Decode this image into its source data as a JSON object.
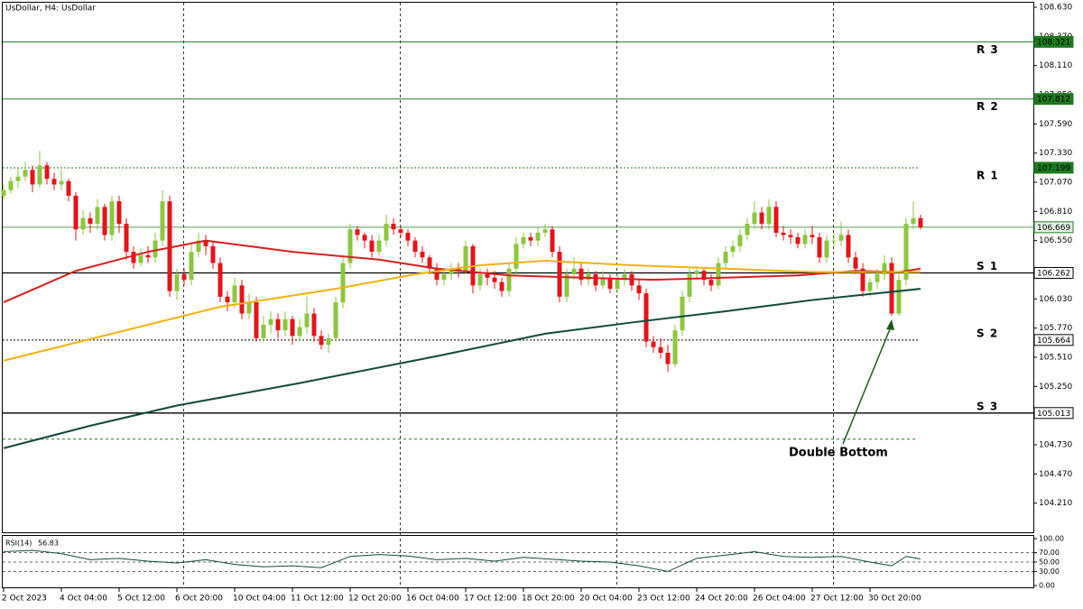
{
  "chart_data": {
    "type": "candlestick",
    "title": "UsDollar, H4:  UsDollar",
    "categories": [
      "2 Oct 2023",
      null,
      null,
      null,
      null,
      null,
      null,
      null,
      "4 Oct 04:00",
      null,
      null,
      null,
      null,
      null,
      null,
      null,
      "5 Oct 12:00",
      null,
      null,
      null,
      null,
      null,
      null,
      null,
      "6 Oct 20:00",
      null,
      null,
      null,
      null,
      null,
      null,
      null,
      "10 Oct 04:00",
      null,
      null,
      null,
      null,
      null,
      null,
      null,
      "11 Oct 12:00",
      null,
      null,
      null,
      null,
      null,
      null,
      null,
      "12 Oct 20:00",
      null,
      null,
      null,
      null,
      null,
      null,
      null,
      "16 Oct 04:00",
      null,
      null,
      null,
      null,
      null,
      null,
      null,
      "17 Oct 12:00",
      null,
      null,
      null,
      null,
      null,
      null,
      null,
      "18 Oct 20:00",
      null,
      null,
      null,
      null,
      null,
      null,
      null,
      "20 Oct 04:00",
      null,
      null,
      null,
      null,
      null,
      null,
      null,
      "23 Oct 12:00",
      null,
      null,
      null,
      null,
      null,
      null,
      null,
      "24 Oct 20:00",
      null,
      null,
      null,
      null,
      null,
      null,
      null,
      "26 Oct 04:00",
      null,
      null,
      null,
      null,
      null,
      null,
      null,
      "27 Oct 12:00",
      null,
      null,
      null,
      null,
      null,
      null,
      null,
      "30 Oct 20:00",
      null,
      null,
      null,
      null,
      null,
      null,
      null
    ],
    "candles": [
      [
        106.95,
        107.05,
        106.92,
        107.0
      ],
      [
        107.0,
        107.12,
        106.97,
        107.08
      ],
      [
        107.08,
        107.2,
        107.02,
        107.12
      ],
      [
        107.12,
        107.25,
        107.08,
        107.18
      ],
      [
        107.18,
        107.22,
        106.98,
        107.05
      ],
      [
        107.05,
        107.35,
        107.02,
        107.22
      ],
      [
        107.22,
        107.25,
        107.05,
        107.1
      ],
      [
        107.1,
        107.15,
        107.0,
        107.05
      ],
      [
        107.05,
        107.18,
        107.0,
        107.08
      ],
      [
        107.08,
        107.1,
        106.9,
        106.95
      ],
      [
        106.95,
        106.98,
        106.55,
        106.65
      ],
      [
        106.65,
        106.82,
        106.6,
        106.75
      ],
      [
        106.75,
        106.8,
        106.62,
        106.7
      ],
      [
        106.7,
        106.92,
        106.65,
        106.85
      ],
      [
        106.85,
        106.88,
        106.55,
        106.6
      ],
      [
        106.6,
        106.95,
        106.55,
        106.9
      ],
      [
        106.9,
        106.95,
        106.62,
        106.7
      ],
      [
        106.7,
        106.75,
        106.38,
        106.45
      ],
      [
        106.45,
        106.5,
        106.3,
        106.35
      ],
      [
        106.35,
        106.48,
        106.32,
        106.42
      ],
      [
        106.42,
        106.5,
        106.35,
        106.4
      ],
      [
        106.4,
        106.62,
        106.35,
        106.55
      ],
      [
        106.55,
        107.0,
        106.5,
        106.9
      ],
      [
        106.9,
        106.95,
        106.05,
        106.1
      ],
      [
        106.1,
        106.3,
        106.02,
        106.25
      ],
      [
        106.25,
        106.3,
        106.15,
        106.2
      ],
      [
        106.2,
        106.52,
        106.15,
        106.45
      ],
      [
        106.45,
        106.62,
        106.4,
        106.55
      ],
      [
        106.55,
        106.6,
        106.42,
        106.5
      ],
      [
        106.5,
        106.55,
        106.3,
        106.35
      ],
      [
        106.35,
        106.4,
        106.0,
        106.05
      ],
      [
        106.05,
        106.1,
        105.92,
        106.0
      ],
      [
        106.0,
        106.22,
        105.95,
        106.15
      ],
      [
        106.15,
        106.2,
        105.85,
        105.9
      ],
      [
        105.9,
        106.08,
        105.85,
        106.0
      ],
      [
        106.0,
        106.05,
        105.65,
        105.68
      ],
      [
        105.68,
        105.88,
        105.65,
        105.8
      ],
      [
        105.8,
        105.92,
        105.72,
        105.85
      ],
      [
        105.85,
        105.9,
        105.68,
        105.75
      ],
      [
        105.75,
        105.92,
        105.7,
        105.85
      ],
      [
        105.85,
        105.88,
        105.62,
        105.7
      ],
      [
        105.7,
        105.85,
        105.65,
        105.78
      ],
      [
        105.78,
        106.05,
        105.72,
        105.9
      ],
      [
        105.9,
        105.95,
        105.65,
        105.7
      ],
      [
        105.7,
        105.75,
        105.58,
        105.62
      ],
      [
        105.62,
        105.72,
        105.55,
        105.68
      ],
      [
        105.68,
        106.05,
        105.65,
        106.0
      ],
      [
        106.0,
        106.4,
        105.95,
        106.35
      ],
      [
        106.35,
        106.7,
        106.3,
        106.65
      ],
      [
        106.65,
        106.68,
        106.55,
        106.6
      ],
      [
        106.6,
        106.62,
        106.48,
        106.55
      ],
      [
        106.55,
        106.6,
        106.4,
        106.45
      ],
      [
        106.45,
        106.6,
        106.42,
        106.55
      ],
      [
        106.55,
        106.78,
        106.5,
        106.7
      ],
      [
        106.7,
        106.75,
        106.6,
        106.65
      ],
      [
        106.65,
        106.68,
        106.58,
        106.62
      ],
      [
        106.62,
        106.65,
        106.5,
        106.55
      ],
      [
        106.55,
        106.58,
        106.4,
        106.45
      ],
      [
        106.45,
        106.5,
        106.35,
        106.4
      ],
      [
        106.4,
        106.42,
        106.25,
        106.3
      ],
      [
        106.3,
        106.35,
        106.15,
        106.2
      ],
      [
        106.2,
        106.3,
        106.15,
        106.25
      ],
      [
        106.25,
        106.35,
        106.2,
        106.3
      ],
      [
        106.3,
        106.35,
        106.22,
        106.28
      ],
      [
        106.28,
        106.55,
        106.25,
        106.5
      ],
      [
        106.5,
        106.52,
        106.08,
        106.15
      ],
      [
        106.15,
        106.3,
        106.1,
        106.25
      ],
      [
        106.25,
        106.3,
        106.15,
        106.22
      ],
      [
        106.22,
        106.28,
        106.12,
        106.18
      ],
      [
        106.18,
        106.22,
        106.05,
        106.1
      ],
      [
        106.1,
        106.35,
        106.05,
        106.3
      ],
      [
        106.3,
        106.58,
        106.25,
        106.52
      ],
      [
        106.52,
        106.62,
        106.48,
        106.58
      ],
      [
        106.58,
        106.62,
        106.5,
        106.55
      ],
      [
        106.55,
        106.68,
        106.5,
        106.62
      ],
      [
        106.62,
        106.7,
        106.58,
        106.65
      ],
      [
        106.65,
        106.68,
        106.4,
        106.45
      ],
      [
        106.45,
        106.5,
        106.0,
        106.05
      ],
      [
        106.05,
        106.3,
        106.0,
        106.25
      ],
      [
        106.25,
        106.4,
        106.2,
        106.3
      ],
      [
        106.3,
        106.35,
        106.15,
        106.2
      ],
      [
        106.2,
        106.3,
        106.15,
        106.25
      ],
      [
        106.25,
        106.28,
        106.1,
        106.15
      ],
      [
        106.15,
        106.28,
        106.12,
        106.22
      ],
      [
        106.22,
        106.25,
        106.08,
        106.12
      ],
      [
        106.12,
        106.25,
        106.08,
        106.2
      ],
      [
        106.2,
        106.3,
        106.15,
        106.25
      ],
      [
        106.25,
        106.28,
        106.1,
        106.15
      ],
      [
        106.15,
        106.2,
        106.02,
        106.08
      ],
      [
        106.08,
        106.12,
        105.6,
        105.65
      ],
      [
        105.65,
        105.7,
        105.55,
        105.6
      ],
      [
        105.6,
        105.68,
        105.5,
        105.55
      ],
      [
        105.55,
        105.62,
        105.38,
        105.45
      ],
      [
        105.45,
        105.8,
        105.42,
        105.75
      ],
      [
        105.75,
        106.1,
        105.7,
        106.05
      ],
      [
        106.05,
        106.3,
        106.0,
        106.25
      ],
      [
        106.25,
        106.32,
        106.2,
        106.28
      ],
      [
        106.28,
        106.3,
        106.15,
        106.2
      ],
      [
        106.2,
        106.25,
        106.1,
        106.15
      ],
      [
        106.15,
        106.4,
        106.12,
        106.35
      ],
      [
        106.35,
        106.5,
        106.3,
        106.45
      ],
      [
        106.45,
        106.55,
        106.4,
        106.5
      ],
      [
        106.5,
        106.65,
        106.45,
        106.6
      ],
      [
        106.6,
        106.75,
        106.55,
        106.7
      ],
      [
        106.7,
        106.9,
        106.65,
        106.8
      ],
      [
        106.8,
        106.85,
        106.65,
        106.7
      ],
      [
        106.7,
        106.92,
        106.65,
        106.85
      ],
      [
        106.85,
        106.9,
        106.58,
        106.62
      ],
      [
        106.62,
        106.68,
        106.55,
        106.6
      ],
      [
        106.6,
        106.65,
        106.52,
        106.58
      ],
      [
        106.58,
        106.62,
        106.48,
        106.52
      ],
      [
        106.52,
        106.65,
        106.48,
        106.6
      ],
      [
        106.6,
        106.68,
        106.52,
        106.58
      ],
      [
        106.58,
        106.62,
        106.35,
        106.4
      ],
      [
        106.4,
        106.6,
        106.35,
        106.55
      ],
      [
        106.55,
        106.62,
        106.5,
        106.55
      ],
      [
        106.55,
        106.72,
        106.5,
        106.6
      ],
      [
        106.6,
        106.65,
        106.35,
        106.4
      ],
      [
        106.4,
        106.45,
        106.25,
        106.3
      ],
      [
        106.3,
        106.35,
        106.05,
        106.1
      ],
      [
        106.1,
        106.22,
        106.05,
        106.18
      ],
      [
        106.18,
        106.3,
        106.12,
        106.25
      ],
      [
        106.25,
        106.42,
        106.2,
        106.35
      ],
      [
        106.35,
        106.4,
        105.88,
        105.9
      ],
      [
        105.9,
        106.25,
        105.88,
        106.2
      ],
      [
        106.2,
        106.75,
        106.15,
        106.7
      ],
      [
        106.7,
        106.9,
        106.65,
        106.75
      ],
      [
        106.75,
        106.78,
        106.65,
        106.67
      ]
    ],
    "up_color": "#8cc63f",
    "down_color": "#e3141b",
    "ylim": [
      103.95,
      108.67
    ],
    "yticks": [
      {
        "value": 108.63,
        "label": "108.630"
      },
      {
        "value": 108.37,
        "label": "108.370"
      },
      {
        "value": 108.11,
        "label": "108.110"
      },
      {
        "value": 107.85,
        "label": "107.850"
      },
      {
        "value": 107.59,
        "label": "107.590"
      },
      {
        "value": 107.33,
        "label": "107.330"
      },
      {
        "value": 107.07,
        "label": "107.070"
      },
      {
        "value": 106.81,
        "label": "106.810"
      },
      {
        "value": 106.55,
        "label": "106.550"
      },
      {
        "value": 106.03,
        "label": "106.030"
      },
      {
        "value": 105.77,
        "label": "105.770"
      },
      {
        "value": 105.51,
        "label": "105.510"
      },
      {
        "value": 105.25,
        "label": "105.250"
      },
      {
        "value": 104.73,
        "label": "104.730"
      },
      {
        "value": 104.47,
        "label": "104.470"
      },
      {
        "value": 104.21,
        "label": "104.210"
      }
    ],
    "moving_averages": [
      {
        "color": "#d81e1e",
        "x": [
          0,
          10,
          20,
          28,
          40,
          52,
          60,
          70,
          80,
          90,
          100,
          110,
          118,
          124,
          127
        ],
        "values": [
          106.0,
          106.28,
          106.45,
          106.55,
          106.45,
          106.38,
          106.3,
          106.24,
          106.22,
          106.2,
          106.22,
          106.24,
          106.28,
          106.27,
          106.3
        ]
      },
      {
        "color": "#f2b20c",
        "x": [
          0,
          15,
          30,
          46,
          57,
          66,
          75,
          87,
          100,
          112,
          127
        ],
        "values": [
          105.48,
          105.72,
          105.96,
          106.12,
          106.25,
          106.33,
          106.37,
          106.33,
          106.3,
          106.27,
          106.27
        ]
      },
      {
        "color": "#0f4a3a",
        "x": [
          0,
          12,
          24,
          41,
          60,
          75,
          87,
          100,
          112,
          127
        ],
        "values": [
          104.7,
          104.9,
          105.08,
          105.28,
          105.52,
          105.72,
          105.82,
          105.92,
          106.02,
          106.12
        ]
      }
    ],
    "levels": [
      {
        "value": 108.321,
        "label": "R 3",
        "color": "#1d7a1d",
        "dash": false
      },
      {
        "value": 107.812,
        "label": "R 2",
        "color": "#1d7a1d",
        "dash": false
      },
      {
        "value": 107.199,
        "label": "R 1",
        "color": "#1d7a1d",
        "dash": true
      },
      {
        "value": 106.262,
        "label": "S 1",
        "color": "#000000",
        "dash": false
      },
      {
        "value": 105.664,
        "label": "S 2",
        "color": "#000000",
        "dash": true
      },
      {
        "value": 105.013,
        "label": "S 3",
        "color": "#000000",
        "dash": false
      }
    ],
    "current_price": {
      "value": 106.669,
      "color": "#1d7a1d"
    },
    "dashed_level": {
      "value": 104.78,
      "color": "#1d7a1d"
    },
    "annotation": {
      "text": "Double Bottom",
      "x": 123,
      "y": 105.88
    },
    "rsi": {
      "label": "RSI(14)",
      "color": "#0f4a3a",
      "x": [
        0,
        4,
        8,
        12,
        16,
        20,
        24,
        28,
        32,
        36,
        40,
        44,
        48,
        52,
        56,
        60,
        64,
        68,
        72,
        76,
        80,
        84,
        88,
        92,
        96,
        100,
        104,
        108,
        112,
        116,
        120,
        123,
        125,
        127
      ],
      "values": [
        72,
        75,
        68,
        55,
        58,
        52,
        48,
        55,
        45,
        40,
        42,
        38,
        62,
        66,
        63,
        55,
        58,
        52,
        60,
        56,
        52,
        50,
        42,
        30,
        58,
        65,
        72,
        62,
        60,
        62,
        50,
        42,
        62,
        56.83
      ],
      "ylim": [
        0,
        100
      ],
      "yticks": [
        {
          "value": 100,
          "label": "100.00"
        },
        {
          "value": 70,
          "label": "70.00"
        },
        {
          "value": 50,
          "label": "50.00"
        },
        {
          "value": 30,
          "label": "30.00"
        },
        {
          "value": 0,
          "label": "0.00"
        }
      ],
      "levels": [
        70,
        50,
        30
      ]
    }
  }
}
